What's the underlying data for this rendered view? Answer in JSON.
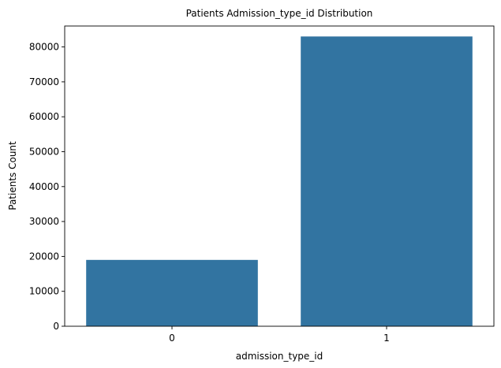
{
  "chart_data": {
    "type": "bar",
    "title": "Patients Admission_type_id Distribution",
    "xlabel": "admission_type_id",
    "ylabel": "Patients Count",
    "categories": [
      "0",
      "1"
    ],
    "values": [
      19000,
      83000
    ],
    "ylim": [
      0,
      86000
    ],
    "yticks": [
      0,
      10000,
      20000,
      30000,
      40000,
      50000,
      60000,
      70000,
      80000
    ],
    "ytick_labels": [
      "0",
      "10000",
      "20000",
      "30000",
      "40000",
      "50000",
      "60000",
      "70000",
      "80000"
    ],
    "bar_color": "#3274a1",
    "grid": false,
    "legend": "none"
  }
}
